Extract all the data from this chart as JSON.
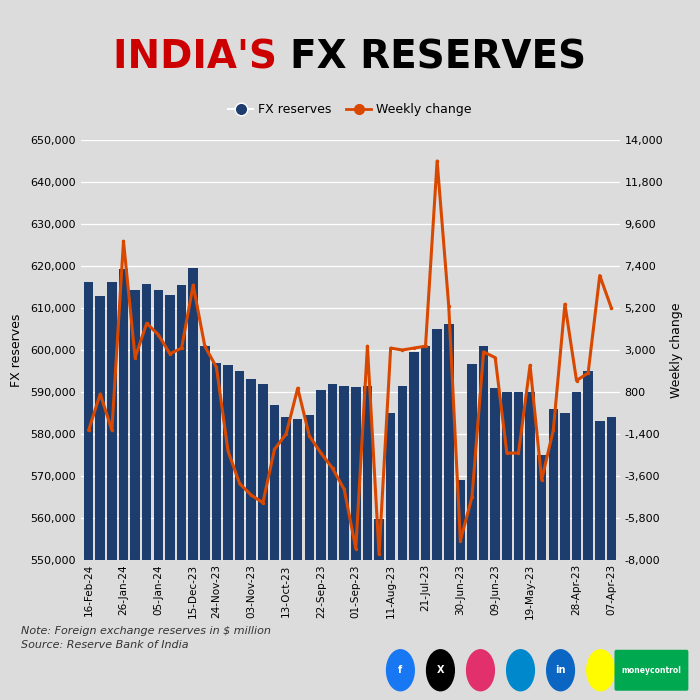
{
  "bar_color": "#1c3d6e",
  "line_color": "#d94800",
  "bg_color": "#dcdcdc",
  "plot_bg": "#dcdcdc",
  "categories": [
    "16-Feb-24",
    "26-Jan-24",
    "05-Jan-24",
    "15-Dec-23",
    "24-Nov-23",
    "03-Nov-23",
    "13-Oct-23",
    "22-Sep-23",
    "01-Sep-23",
    "11-Aug-23",
    "21-Jul-23",
    "30-Jun-23",
    "09-Jun-23",
    "19-May-23",
    "28-Apr-23",
    "07-Apr-23"
  ],
  "fx_reserves": [
    616100,
    612800,
    616200,
    619300,
    614400,
    615600,
    614400,
    613200,
    615500,
    619600,
    601000,
    597000,
    596500,
    595000,
    593000,
    592000,
    587000,
    584000,
    583500,
    584500,
    590500,
    592000,
    591500,
    591200,
    591500,
    559700,
    585000,
    591500,
    599500,
    601000,
    605000,
    606300,
    569000,
    596600,
    601000,
    591000,
    590000,
    590000,
    590000,
    575000,
    586000,
    585000,
    590000,
    595000,
    583000,
    584000
  ],
  "weekly_change": [
    -1200,
    700,
    -1200,
    8700,
    2600,
    4400,
    3800,
    2800,
    3100,
    6400,
    3200,
    2100,
    -2300,
    -4000,
    -4600,
    -5000,
    -2200,
    -1400,
    1000,
    -1500,
    -2400,
    -3200,
    -4300,
    -7400,
    3200,
    -7700,
    3100,
    3000,
    3100,
    3200,
    12900,
    5300,
    -7000,
    -4700,
    2900,
    2600,
    -2400,
    -2400,
    2200,
    -3800,
    -1200,
    5400,
    1400,
    1800,
    6900,
    5200
  ],
  "xtick_positions": [
    0,
    3,
    6,
    9,
    11,
    14,
    17,
    20,
    23,
    26,
    29,
    32,
    35,
    38,
    42,
    45
  ],
  "xtick_labels": [
    "16-Feb-24",
    "26-Jan-24",
    "05-Jan-24",
    "15-Dec-23",
    "24-Nov-23",
    "03-Nov-23",
    "13-Oct-23",
    "22-Sep-23",
    "01-Sep-23",
    "11-Aug-23",
    "21-Jul-23",
    "30-Jun-23",
    "09-Jun-23",
    "19-May-23",
    "28-Apr-23",
    "07-Apr-23"
  ],
  "note_line1": "Note: Foreign exchange reserves in $ million",
  "note_line2": "Source: Reserve Bank of India",
  "ylabel_left": "FX reserves",
  "ylabel_right": "Weekly change",
  "ylim_left": [
    550000,
    650000
  ],
  "ylim_right": [
    -8000,
    14000
  ],
  "yticks_left": [
    550000,
    560000,
    570000,
    580000,
    590000,
    600000,
    610000,
    620000,
    630000,
    640000,
    650000
  ],
  "yticks_right": [
    -8000,
    -5800,
    -3600,
    -1400,
    800,
    3000,
    5200,
    7400,
    9600,
    11800,
    14000
  ],
  "title_red": "INDIA'S ",
  "title_black": "FX RESERVES",
  "title_fontsize": 28,
  "legend_label_bar": "FX reserves",
  "legend_label_line": "Weekly change"
}
